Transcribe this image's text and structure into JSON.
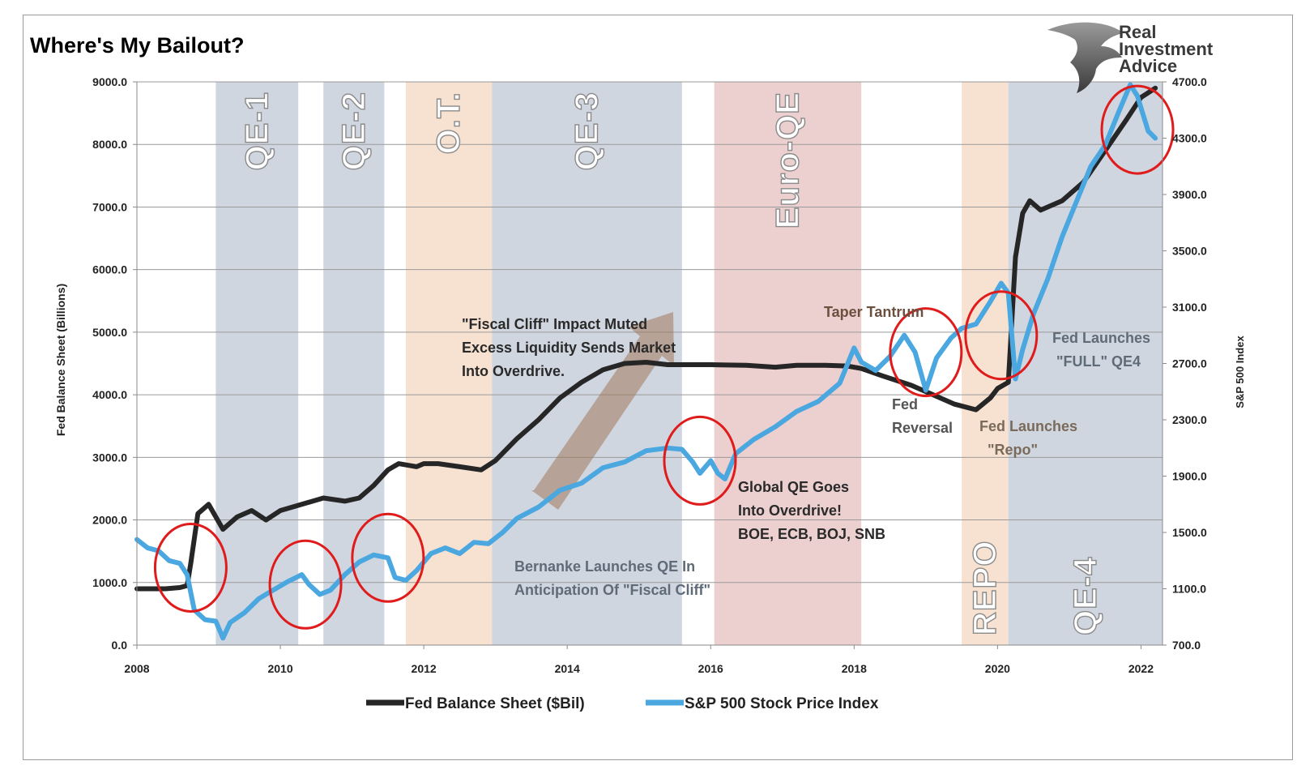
{
  "chart_data": {
    "type": "line",
    "title": "Where's My Bailout?",
    "ylabel": "Fed Balance Sheet (Billions)",
    "y2label": "S&P 500 Index",
    "xlim": [
      2008,
      2022.3
    ],
    "ylim": [
      0,
      9000
    ],
    "y2lim": [
      700,
      4700
    ],
    "xticks": [
      "2008",
      "2010",
      "2012",
      "2014",
      "2016",
      "2018",
      "2020",
      "2022"
    ],
    "xtick_values": [
      2008,
      2010,
      2012,
      2014,
      2016,
      2018,
      2020,
      2022
    ],
    "yticks": [
      "0.0",
      "1000.0",
      "2000.0",
      "3000.0",
      "4000.0",
      "5000.0",
      "6000.0",
      "7000.0",
      "8000.0",
      "9000.0"
    ],
    "ytick_values": [
      0,
      1000,
      2000,
      3000,
      4000,
      5000,
      6000,
      7000,
      8000,
      9000
    ],
    "y2ticks": [
      "700.0",
      "1100.0",
      "1500.0",
      "1900.0",
      "2300.0",
      "2700.0",
      "3100.0",
      "3500.0",
      "3900.0",
      "4300.0",
      "4700.0"
    ],
    "y2tick_values": [
      700,
      1100,
      1500,
      1900,
      2300,
      2700,
      3100,
      3500,
      3900,
      4300,
      4700
    ],
    "grid": true,
    "legend_placement": "bottom-center",
    "series": [
      {
        "name": "Fed Balance Sheet ($Bil)",
        "axis": "left",
        "color": "#262626",
        "points": [
          [
            2008.0,
            900
          ],
          [
            2008.4,
            900
          ],
          [
            2008.6,
            920
          ],
          [
            2008.7,
            950
          ],
          [
            2008.75,
            1300
          ],
          [
            2008.85,
            2100
          ],
          [
            2009.0,
            2250
          ],
          [
            2009.2,
            1850
          ],
          [
            2009.4,
            2050
          ],
          [
            2009.6,
            2150
          ],
          [
            2009.8,
            2000
          ],
          [
            2010.0,
            2150
          ],
          [
            2010.3,
            2250
          ],
          [
            2010.6,
            2350
          ],
          [
            2010.9,
            2300
          ],
          [
            2011.1,
            2350
          ],
          [
            2011.3,
            2550
          ],
          [
            2011.5,
            2800
          ],
          [
            2011.65,
            2900
          ],
          [
            2011.9,
            2850
          ],
          [
            2012.0,
            2900
          ],
          [
            2012.2,
            2900
          ],
          [
            2012.5,
            2850
          ],
          [
            2012.8,
            2800
          ],
          [
            2013.0,
            2950
          ],
          [
            2013.3,
            3300
          ],
          [
            2013.6,
            3600
          ],
          [
            2013.9,
            3950
          ],
          [
            2014.2,
            4200
          ],
          [
            2014.5,
            4400
          ],
          [
            2014.8,
            4500
          ],
          [
            2015.1,
            4520
          ],
          [
            2015.4,
            4480
          ],
          [
            2016.0,
            4480
          ],
          [
            2016.5,
            4470
          ],
          [
            2016.9,
            4440
          ],
          [
            2017.2,
            4470
          ],
          [
            2017.6,
            4470
          ],
          [
            2017.9,
            4460
          ],
          [
            2018.1,
            4420
          ],
          [
            2018.4,
            4300
          ],
          [
            2018.8,
            4150
          ],
          [
            2019.1,
            4000
          ],
          [
            2019.4,
            3850
          ],
          [
            2019.7,
            3760
          ],
          [
            2019.9,
            3950
          ],
          [
            2020.0,
            4100
          ],
          [
            2020.15,
            4200
          ],
          [
            2020.25,
            6200
          ],
          [
            2020.35,
            6900
          ],
          [
            2020.45,
            7100
          ],
          [
            2020.6,
            6950
          ],
          [
            2020.9,
            7100
          ],
          [
            2021.2,
            7400
          ],
          [
            2021.5,
            7900
          ],
          [
            2021.8,
            8400
          ],
          [
            2022.0,
            8750
          ],
          [
            2022.2,
            8900
          ]
        ]
      },
      {
        "name": "S&P 500 Stock Price Index",
        "axis": "right",
        "color": "#4aa7e0",
        "points": [
          [
            2008.0,
            1450
          ],
          [
            2008.15,
            1390
          ],
          [
            2008.3,
            1370
          ],
          [
            2008.45,
            1300
          ],
          [
            2008.6,
            1280
          ],
          [
            2008.7,
            1200
          ],
          [
            2008.8,
            950
          ],
          [
            2008.95,
            880
          ],
          [
            2009.1,
            870
          ],
          [
            2009.2,
            750
          ],
          [
            2009.3,
            860
          ],
          [
            2009.5,
            930
          ],
          [
            2009.7,
            1030
          ],
          [
            2009.9,
            1090
          ],
          [
            2010.1,
            1150
          ],
          [
            2010.3,
            1200
          ],
          [
            2010.4,
            1130
          ],
          [
            2010.55,
            1060
          ],
          [
            2010.7,
            1090
          ],
          [
            2010.9,
            1200
          ],
          [
            2011.1,
            1290
          ],
          [
            2011.3,
            1340
          ],
          [
            2011.5,
            1320
          ],
          [
            2011.6,
            1180
          ],
          [
            2011.75,
            1160
          ],
          [
            2011.9,
            1230
          ],
          [
            2012.1,
            1350
          ],
          [
            2012.3,
            1390
          ],
          [
            2012.5,
            1350
          ],
          [
            2012.7,
            1430
          ],
          [
            2012.9,
            1420
          ],
          [
            2013.1,
            1500
          ],
          [
            2013.3,
            1600
          ],
          [
            2013.6,
            1680
          ],
          [
            2013.9,
            1800
          ],
          [
            2014.2,
            1850
          ],
          [
            2014.5,
            1960
          ],
          [
            2014.8,
            2000
          ],
          [
            2015.1,
            2080
          ],
          [
            2015.4,
            2100
          ],
          [
            2015.6,
            2090
          ],
          [
            2015.75,
            2000
          ],
          [
            2015.85,
            1920
          ],
          [
            2016.0,
            2010
          ],
          [
            2016.1,
            1920
          ],
          [
            2016.2,
            1880
          ],
          [
            2016.35,
            2060
          ],
          [
            2016.6,
            2160
          ],
          [
            2016.9,
            2250
          ],
          [
            2017.2,
            2360
          ],
          [
            2017.5,
            2430
          ],
          [
            2017.8,
            2560
          ],
          [
            2018.0,
            2810
          ],
          [
            2018.1,
            2710
          ],
          [
            2018.3,
            2650
          ],
          [
            2018.5,
            2750
          ],
          [
            2018.7,
            2900
          ],
          [
            2018.85,
            2780
          ],
          [
            2019.0,
            2510
          ],
          [
            2019.15,
            2740
          ],
          [
            2019.35,
            2880
          ],
          [
            2019.5,
            2950
          ],
          [
            2019.7,
            2980
          ],
          [
            2019.9,
            3140
          ],
          [
            2020.05,
            3270
          ],
          [
            2020.15,
            3200
          ],
          [
            2020.25,
            2590
          ],
          [
            2020.35,
            2800
          ],
          [
            2020.5,
            3050
          ],
          [
            2020.7,
            3300
          ],
          [
            2020.9,
            3600
          ],
          [
            2021.1,
            3850
          ],
          [
            2021.3,
            4100
          ],
          [
            2021.5,
            4250
          ],
          [
            2021.7,
            4500
          ],
          [
            2021.85,
            4680
          ],
          [
            2021.95,
            4600
          ],
          [
            2022.1,
            4350
          ],
          [
            2022.2,
            4300
          ]
        ]
      }
    ],
    "bands": [
      {
        "label": "QE-1",
        "start": 2009.1,
        "end": 2010.25,
        "color": "#d0d6e0"
      },
      {
        "label": "QE-2",
        "start": 2010.6,
        "end": 2011.45,
        "color": "#d0d6e0"
      },
      {
        "label": "O.T.",
        "start": 2011.75,
        "end": 2012.95,
        "color": "#f7e2d2"
      },
      {
        "label": "QE-3",
        "start": 2012.95,
        "end": 2015.6,
        "color": "#d0d6e0"
      },
      {
        "label": "Euro-QE",
        "start": 2016.05,
        "end": 2018.1,
        "color": "#eccfcf"
      },
      {
        "label": "REPO",
        "start": 2019.5,
        "end": 2020.15,
        "color": "#f7e2d2"
      },
      {
        "label": "QE-4",
        "start": 2020.15,
        "end": 2022.3,
        "color": "#d0d6e0"
      }
    ],
    "circles": [
      {
        "x": 2008.75,
        "y": 1250
      },
      {
        "x": 2010.35,
        "y": 1130
      },
      {
        "x": 2011.5,
        "y": 1320
      },
      {
        "x": 2015.85,
        "y": 2010
      },
      {
        "x": 2019.0,
        "y": 2780
      },
      {
        "x": 2020.05,
        "y": 2900
      },
      {
        "x": 2021.95,
        "y": 4360
      }
    ],
    "annotations": [
      "\"Fiscal Cliff\" Impact Muted",
      "Excess Liquidity Sends Market",
      "Into Overdrive.",
      "Taper Tantrum",
      "Fed Launches",
      "\"FULL\" QE4",
      "Fed",
      "Reversal",
      "Fed Launches",
      "\"Repo\"",
      "Global QE Goes",
      "Into Overdrive!",
      "BOE, ECB, BOJ, SNB",
      "Bernanke Launches QE In",
      "Anticipation Of \"Fiscal Cliff\""
    ]
  },
  "logo": {
    "line1": "Real",
    "line2": "Investment",
    "line3": "Advice"
  }
}
